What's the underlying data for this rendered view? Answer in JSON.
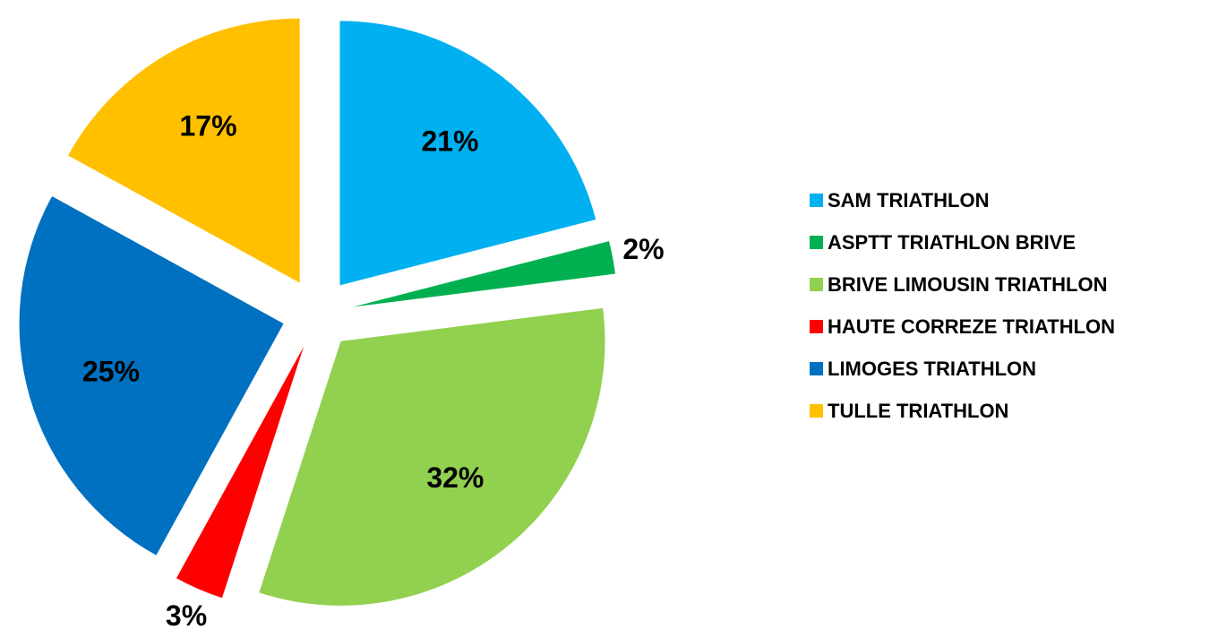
{
  "chart_data": {
    "type": "pie",
    "categories": [
      "SAM TRIATHLON",
      "ASPTT TRIATHLON BRIVE",
      "BRIVE LIMOUSIN TRIATHLON",
      "HAUTE CORREZE TRIATHLON",
      "LIMOGES TRIATHLON",
      "TULLE TRIATHLON"
    ],
    "values": [
      21,
      2,
      32,
      3,
      25,
      17
    ],
    "value_labels": [
      "21%",
      "2%",
      "32%",
      "3%",
      "25%",
      "17%"
    ],
    "colors": [
      "#00b0f0",
      "#00b050",
      "#92d050",
      "#ff0000",
      "#0070c0",
      "#ffc000"
    ],
    "legend": "right"
  }
}
